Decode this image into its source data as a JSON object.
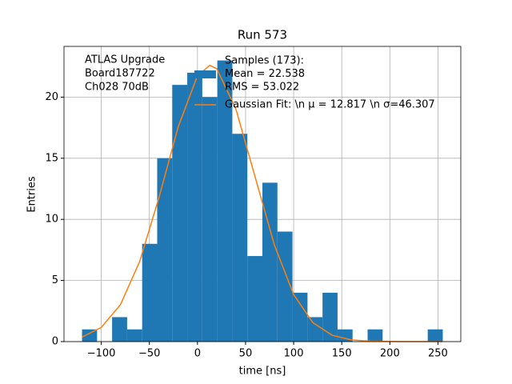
{
  "chart_data": {
    "type": "histogram",
    "title": "Run 573",
    "xlabel": "time [ns]",
    "ylabel": "Entries",
    "annotation": [
      "ATLAS Upgrade",
      " Board187722",
      " Ch028 70dB"
    ],
    "bins": [
      -120,
      -104.375,
      -88.75,
      -73.125,
      -57.5,
      -41.875,
      -26.25,
      -10.625,
      5,
      20.625,
      36.25,
      51.875,
      67.5,
      83.125,
      98.75,
      114.375,
      130,
      145.625,
      161.25,
      176.875,
      192.5,
      208.125,
      223.75,
      239.375,
      255
    ],
    "series": [
      {
        "name": [
          "Samples (173):",
          " Mean = 22.538",
          " RMS = 53.022"
        ],
        "color": "#1f77b4",
        "values": [
          1,
          0,
          2,
          1,
          8,
          15,
          21,
          22,
          20,
          23,
          17,
          7,
          13,
          9,
          4,
          2,
          4,
          1,
          0,
          1,
          0,
          0,
          0,
          1
        ]
      },
      {
        "type": "line",
        "name": "Gaussian Fit: \\n μ = 12.817 \\n σ=46.307",
        "color": "#ff7f0e",
        "x": [
          -120,
          -100,
          -80,
          -60,
          -40,
          -20,
          0,
          12.817,
          20,
          40,
          60,
          80,
          100,
          120,
          140,
          160,
          180,
          200,
          220,
          240,
          255
        ],
        "values": [
          0.37,
          1.16,
          3.03,
          6.57,
          11.79,
          17.58,
          21.75,
          22.6,
          22.33,
          19.02,
          13.45,
          7.89,
          3.84,
          1.55,
          0.52,
          0.14,
          0.03,
          0.01,
          0,
          0,
          0
        ]
      }
    ],
    "xlim": [
      -138.75,
      273.75
    ],
    "ylim": [
      0,
      24.15
    ],
    "xticks": [
      {
        "value": -100,
        "label": "−100"
      },
      {
        "value": -50,
        "label": "−50"
      },
      0,
      50,
      100,
      150,
      200,
      250
    ],
    "yticks": [
      0,
      5,
      10,
      15,
      20
    ],
    "grid": true
  }
}
